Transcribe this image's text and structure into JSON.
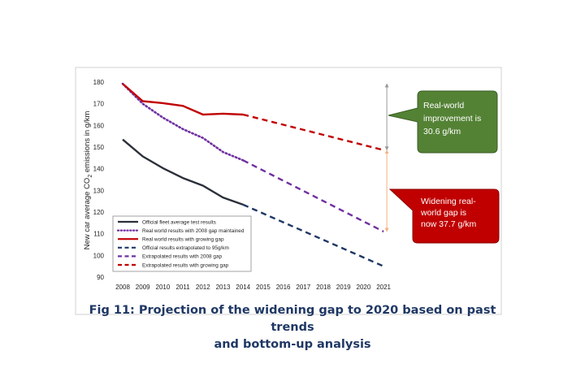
{
  "chart_data": {
    "type": "line",
    "ylabel": "New car average CO₂ emissions in g/km",
    "ylabel_parts": [
      "New car average CO",
      "2",
      " emissions in g/km"
    ],
    "ylim": [
      90,
      180
    ],
    "yticks": [
      90,
      100,
      110,
      120,
      130,
      140,
      150,
      160,
      170,
      180
    ],
    "x": [
      2008,
      2009,
      2010,
      2011,
      2012,
      2013,
      2014,
      2015,
      2016,
      2017,
      2018,
      2019,
      2020,
      2021
    ],
    "series": [
      {
        "name": "Official fleet average test results",
        "color": "#2b2f3a",
        "style": "solid",
        "points": [
          [
            2008,
            153.5
          ],
          [
            2009,
            145.7
          ],
          [
            2010,
            140.3
          ],
          [
            2011,
            135.7
          ],
          [
            2012,
            132.2
          ],
          [
            2013,
            126.7
          ],
          [
            2014,
            123.4
          ]
        ]
      },
      {
        "name": "Real world results with 2008 gap maintained",
        "color": "#7030a0",
        "style": "dotted",
        "points": [
          [
            2008,
            179.2
          ],
          [
            2009,
            170.0
          ],
          [
            2010,
            163.6
          ],
          [
            2011,
            158.3
          ],
          [
            2012,
            154.2
          ],
          [
            2013,
            147.7
          ],
          [
            2014,
            143.9
          ]
        ]
      },
      {
        "name": "Real world results with growing gap",
        "color": "#c00000",
        "style": "solid",
        "points": [
          [
            2008,
            179.2
          ],
          [
            2009,
            171.2
          ],
          [
            2010,
            170.3
          ],
          [
            2011,
            169.0
          ],
          [
            2012,
            165.0
          ],
          [
            2013,
            165.4
          ],
          [
            2014,
            165.0
          ]
        ]
      },
      {
        "name": "Official results extrapolated to 95g/km",
        "color": "#1f3864",
        "style": "dashed",
        "points": [
          [
            2014,
            123.4
          ],
          [
            2021,
            95.0
          ]
        ]
      },
      {
        "name": "Extrapolated results with 2008 gap",
        "color": "#7030a0",
        "style": "dashed",
        "points": [
          [
            2014,
            143.9
          ],
          [
            2021,
            111.0
          ]
        ]
      },
      {
        "name": "Extrapolated results with growing gap",
        "color": "#c00000",
        "style": "dashed",
        "points": [
          [
            2014,
            165.0
          ],
          [
            2021,
            148.6
          ]
        ]
      }
    ],
    "annotations": [
      {
        "id": "improvement",
        "text_lines": [
          "Real-world",
          "improvement is",
          "30.6 g/km"
        ],
        "fill": "#548235",
        "range": [
          148.6,
          179.2
        ],
        "arrow_color": "#999999"
      },
      {
        "id": "gap",
        "text_lines": [
          "Widening real-",
          "world gap is",
          "now 37.7 g/km"
        ],
        "fill": "#c00000",
        "range": [
          111.0,
          148.6
        ],
        "arrow_color": "#f4b183"
      }
    ]
  },
  "caption": {
    "line1": "Fig 11: Projection of the widening gap to 2020 based on past trends",
    "line2": "and bottom-up analysis"
  }
}
